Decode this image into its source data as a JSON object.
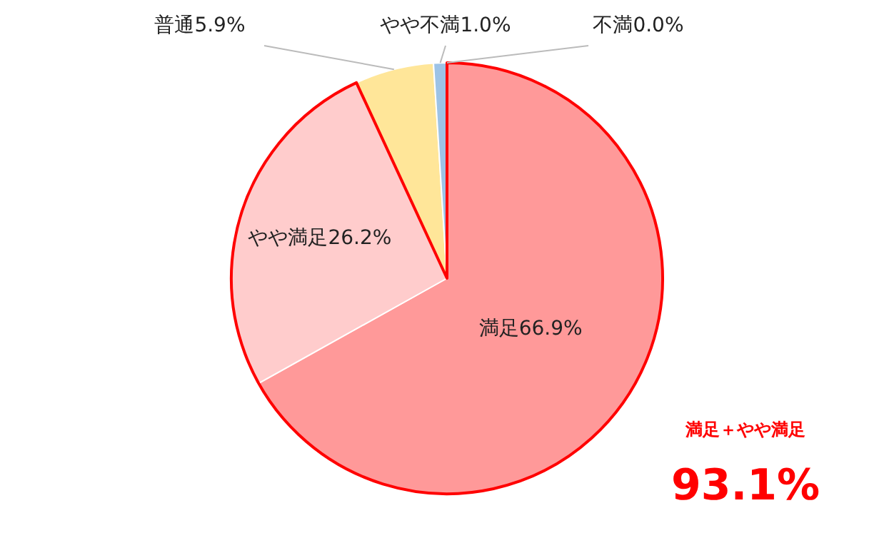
{
  "chart_data": {
    "type": "pie",
    "categories": [
      "満足",
      "やや満足",
      "普通",
      "やや不満",
      "不満"
    ],
    "values": [
      66.9,
      26.2,
      5.9,
      1.0,
      0.0
    ],
    "value_labels": [
      "66.9%",
      "26.2%",
      "5.9%",
      "1.0%",
      "0.0%"
    ],
    "colors": [
      "#ff9999",
      "#ffcccc",
      "#ffe699",
      "#9dc3e6",
      "#5b9bd5"
    ],
    "annotations": [
      "満足＋やや満足",
      "93.1%"
    ]
  }
}
